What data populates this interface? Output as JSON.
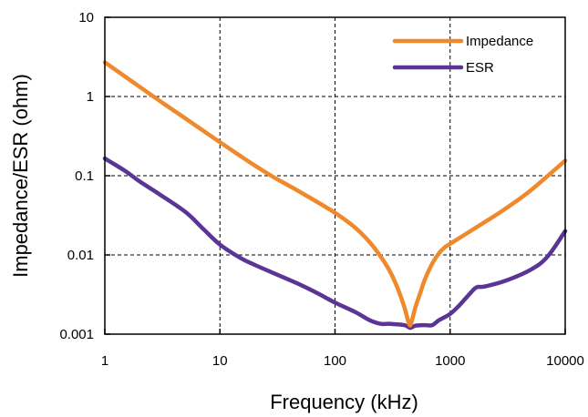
{
  "chart_data": {
    "type": "line",
    "title": "",
    "xlabel": "Frequency (kHz)",
    "ylabel": "Impedance/ESR (ohm)",
    "xscale": "log",
    "yscale": "log",
    "xlim": [
      1,
      10000
    ],
    "ylim": [
      0.001,
      10
    ],
    "x_ticks": [
      1,
      10,
      100,
      1000,
      10000
    ],
    "x_tick_labels": [
      "1",
      "10",
      "100",
      "1000",
      "10000"
    ],
    "y_ticks": [
      0.001,
      0.01,
      0.1,
      1,
      10
    ],
    "y_tick_labels": [
      "0.001",
      "0.01",
      "0.1",
      "1",
      "10"
    ],
    "grid": true,
    "legend": "top-right",
    "series": [
      {
        "name": "Impedance",
        "color": "#f0882c",
        "points": [
          [
            1,
            2.7
          ],
          [
            2,
            1.33
          ],
          [
            3,
            0.88
          ],
          [
            5,
            0.53
          ],
          [
            10,
            0.265
          ],
          [
            20,
            0.135
          ],
          [
            30,
            0.094
          ],
          [
            50,
            0.062
          ],
          [
            100,
            0.034
          ],
          [
            150,
            0.022
          ],
          [
            200,
            0.0145
          ],
          [
            250,
            0.0095
          ],
          [
            300,
            0.0062
          ],
          [
            350,
            0.0038
          ],
          [
            400,
            0.0022
          ],
          [
            440,
            0.00135
          ],
          [
            460,
            0.0014
          ],
          [
            500,
            0.0022
          ],
          [
            550,
            0.0033
          ],
          [
            600,
            0.0048
          ],
          [
            700,
            0.0078
          ],
          [
            800,
            0.0105
          ],
          [
            900,
            0.0125
          ],
          [
            1000,
            0.0138
          ],
          [
            2000,
            0.026
          ],
          [
            3000,
            0.038
          ],
          [
            5000,
            0.065
          ],
          [
            10000,
            0.155
          ]
        ]
      },
      {
        "name": "ESR",
        "color": "#5b3596",
        "points": [
          [
            1,
            0.165
          ],
          [
            1.5,
            0.115
          ],
          [
            2,
            0.085
          ],
          [
            3,
            0.058
          ],
          [
            5,
            0.035
          ],
          [
            7,
            0.022
          ],
          [
            10,
            0.0135
          ],
          [
            15,
            0.0092
          ],
          [
            20,
            0.0075
          ],
          [
            30,
            0.0058
          ],
          [
            50,
            0.0042
          ],
          [
            70,
            0.0033
          ],
          [
            100,
            0.0025
          ],
          [
            150,
            0.0019
          ],
          [
            200,
            0.0015
          ],
          [
            250,
            0.00135
          ],
          [
            300,
            0.00135
          ],
          [
            400,
            0.0013
          ],
          [
            450,
            0.0012
          ],
          [
            500,
            0.00128
          ],
          [
            600,
            0.0013
          ],
          [
            700,
            0.0013
          ],
          [
            800,
            0.0015
          ],
          [
            1000,
            0.0018
          ],
          [
            1200,
            0.0023
          ],
          [
            1500,
            0.0033
          ],
          [
            1700,
            0.0039
          ],
          [
            2000,
            0.004
          ],
          [
            3000,
            0.0047
          ],
          [
            5000,
            0.0065
          ],
          [
            7000,
            0.0095
          ],
          [
            10000,
            0.02
          ]
        ]
      }
    ]
  }
}
